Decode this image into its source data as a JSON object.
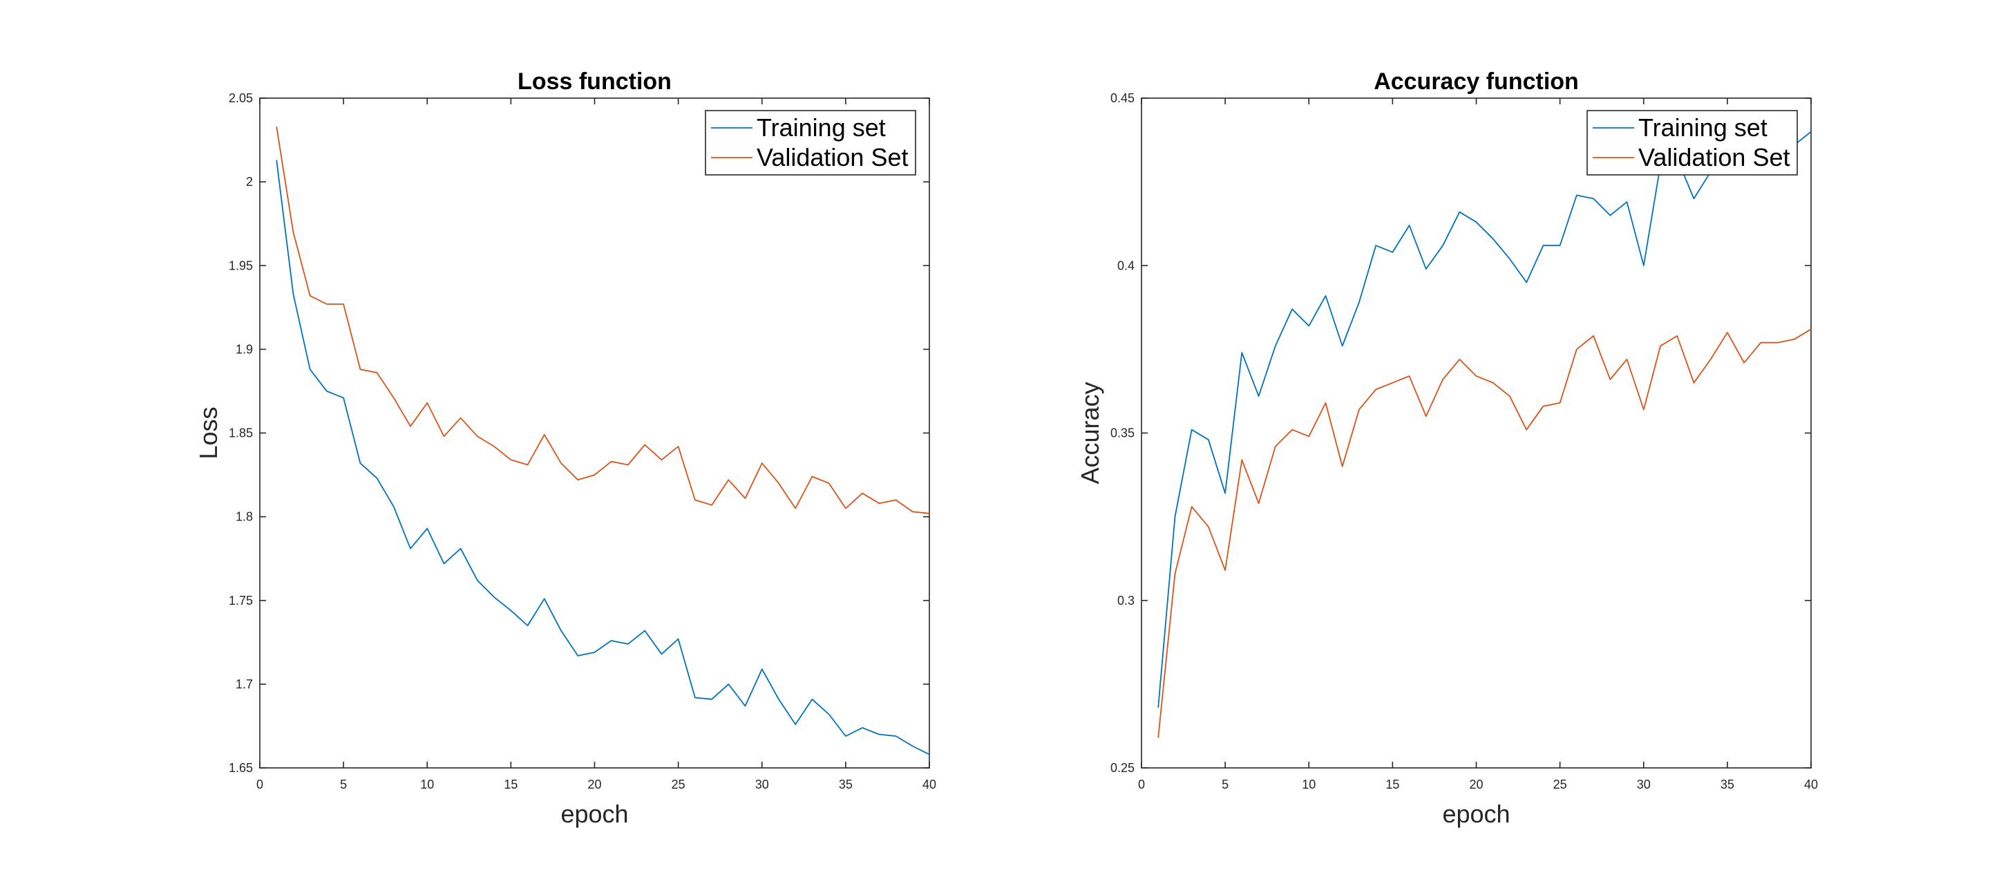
{
  "chart_data": [
    {
      "type": "line",
      "title": "Loss function",
      "xlabel": "epoch",
      "ylabel": "Loss",
      "xlim": [
        0,
        40
      ],
      "ylim": [
        1.65,
        2.05
      ],
      "xticks": [
        "0",
        "5",
        "10",
        "15",
        "20",
        "25",
        "30",
        "35",
        "40"
      ],
      "yticks": [
        "1.65",
        "1.7",
        "1.75",
        "1.8",
        "1.85",
        "1.9",
        "1.95",
        "2",
        "2.05"
      ],
      "grid": false,
      "legend_position": "top-right",
      "x": [
        1,
        2,
        3,
        4,
        5,
        6,
        7,
        8,
        9,
        10,
        11,
        12,
        13,
        14,
        15,
        16,
        17,
        18,
        19,
        20,
        21,
        22,
        23,
        24,
        25,
        26,
        27,
        28,
        29,
        30,
        31,
        32,
        33,
        34,
        35,
        36,
        37,
        38,
        39,
        40
      ],
      "series": [
        {
          "name": "Training set",
          "color": "#0072BD",
          "values": [
            2.013,
            1.933,
            1.888,
            1.875,
            1.871,
            1.832,
            1.823,
            1.806,
            1.781,
            1.793,
            1.772,
            1.781,
            1.762,
            1.752,
            1.744,
            1.735,
            1.751,
            1.732,
            1.717,
            1.719,
            1.726,
            1.724,
            1.732,
            1.718,
            1.727,
            1.692,
            1.691,
            1.7,
            1.687,
            1.709,
            1.691,
            1.676,
            1.691,
            1.682,
            1.669,
            1.674,
            1.67,
            1.669,
            1.663,
            1.658
          ]
        },
        {
          "name": "Validation Set",
          "color": "#D95319",
          "values": [
            2.033,
            1.97,
            1.932,
            1.927,
            1.927,
            1.888,
            1.886,
            1.871,
            1.854,
            1.868,
            1.848,
            1.859,
            1.848,
            1.842,
            1.834,
            1.831,
            1.849,
            1.832,
            1.822,
            1.825,
            1.833,
            1.831,
            1.843,
            1.834,
            1.842,
            1.81,
            1.807,
            1.822,
            1.811,
            1.832,
            1.82,
            1.805,
            1.824,
            1.82,
            1.805,
            1.814,
            1.808,
            1.81,
            1.803,
            1.802
          ]
        }
      ]
    },
    {
      "type": "line",
      "title": "Accuracy function",
      "xlabel": "epoch",
      "ylabel": "Accuracy",
      "xlim": [
        0,
        40
      ],
      "ylim": [
        0.25,
        0.45
      ],
      "xticks": [
        "0",
        "5",
        "10",
        "15",
        "20",
        "25",
        "30",
        "35",
        "40"
      ],
      "yticks": [
        "0.25",
        "0.3",
        "0.35",
        "0.4",
        "0.45"
      ],
      "grid": false,
      "legend_position": "top-right",
      "x": [
        1,
        2,
        3,
        4,
        5,
        6,
        7,
        8,
        9,
        10,
        11,
        12,
        13,
        14,
        15,
        16,
        17,
        18,
        19,
        20,
        21,
        22,
        23,
        24,
        25,
        26,
        27,
        28,
        29,
        30,
        31,
        32,
        33,
        34,
        35,
        36,
        37,
        38,
        39,
        40
      ],
      "series": [
        {
          "name": "Training set",
          "color": "#0072BD",
          "values": [
            0.268,
            0.325,
            0.351,
            0.348,
            0.332,
            0.374,
            0.361,
            0.376,
            0.387,
            0.382,
            0.391,
            0.376,
            0.389,
            0.406,
            0.404,
            0.412,
            0.399,
            0.406,
            0.416,
            0.413,
            0.408,
            0.402,
            0.395,
            0.406,
            0.406,
            0.421,
            0.42,
            0.415,
            0.419,
            0.4,
            0.43,
            0.432,
            0.42,
            0.428,
            0.433,
            0.431,
            0.435,
            0.434,
            0.436,
            0.44
          ]
        },
        {
          "name": "Validation Set",
          "color": "#D95319",
          "values": [
            0.259,
            0.308,
            0.328,
            0.322,
            0.309,
            0.342,
            0.329,
            0.346,
            0.351,
            0.349,
            0.359,
            0.34,
            0.357,
            0.363,
            0.365,
            0.367,
            0.355,
            0.366,
            0.372,
            0.367,
            0.365,
            0.361,
            0.351,
            0.358,
            0.359,
            0.375,
            0.379,
            0.366,
            0.372,
            0.357,
            0.376,
            0.379,
            0.365,
            0.372,
            0.38,
            0.371,
            0.377,
            0.377,
            0.378,
            0.381
          ]
        }
      ]
    }
  ]
}
